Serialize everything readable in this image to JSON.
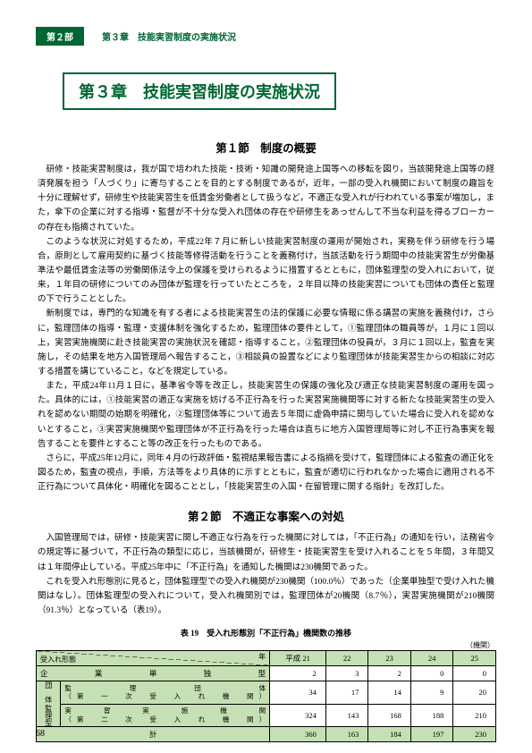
{
  "header": {
    "part_tab": "第２部",
    "breadcrumb": "第３章　技能実習制度の実施状況"
  },
  "chapter_title": "第３章　技能実習制度の実施状況",
  "section1_title": "第１節　制度の概要",
  "para1": "研修・技能実習制度は，我が国で培われた技能・技術・知識の開発途上国等への移転を図り，当該開発途上国等の経済発展を担う「人づくり」に寄与することを目的とする制度であるが，近年，一部の受入れ機関において制度の趣旨を十分に理解せず，研修生や技能実習生を低賃金労働者として扱うなど，不適正な受入れが行われている事案が増加し，また，傘下の企業に対する指導・監督が不十分な受入れ団体の存在や研修生をあっせんして不当な利益を得るブローカーの存在も指摘されていた。",
  "para2": "このような状況に対処するため，平成22年７月に新しい技能実習制度の運用が開始され，実務を伴う研修を行う場合，原則として雇用契約に基づく技能等修得活動を行うことを義務付け，当該活動を行う期間中の技能実習生が労働基準法や最低賃金法等の労働関係法令上の保護を受けられるように措置するとともに，団体監理型の受入れにおいて，従来，１年目の研修についてのみ団体が監理を行っていたところを，２年目以降の技能実習についても団体の責任と監理の下で行うこととした。",
  "para3": "新制度では，専門的な知識を有する者による技能実習生の法的保護に必要な情報に係る講習の実施を義務付け，さらに，監理団体の指導・監理・支援体制を強化するため，監理団体の要件として，①監理団体の職員等が，１月に１回以上，実習実施機関に赴き技能実習の実施状況を確認・指導すること，②監理団体の役員が，３月に１回以上，監査を実施し，その結果を地方入国管理局へ報告すること，③相談員の設置などにより監理団体が技能実習生からの相談に対応する措置を講じていること，などを規定している。",
  "para4": "また，平成24年11月１日に，基準省令等を改正し，技能実習生の保護の強化及び適正な技能実習制度の運用を図った。具体的には，①技能実習の適正な実施を妨げる不正行為を行った実習実施機関等に対する新たな技能実習生の受入れを認めない期間の始期を明確化，②監理団体等について過去５年間に虚偽申請に関与していた場合に受入れを認めないとすること，③実習実施機関や監理団体が不正行為を行った場合は直ちに地方入国管理局等に対し不正行為事実を報告することを要件とすること等の改正を行ったものである。",
  "para5": "さらに，平成25年12月に，同年４月の行政評価・監視結果報告書による指摘を受けて，監理団体による監査の適正化を図るため，監査の視点，手順，方法等をより具体的に示すとともに，監査が適切に行われなかった場合に適用される不正行為について具体化・明確化を図ることとし，「技能実習生の入国・在留管理に関する指針」を改訂した。",
  "section2_title": "第２節　不適正な事案への対処",
  "para6": "入国管理局では，研修・技能実習に関し不適正な行為を行った機関に対しては，「不正行為」の通知を行い，法務省令の規定等に基づいて，不正行為の類型に応じ，当該機関が，研修生・技能実習生を受け入れることを５年間，３年間又は１年間停止している。平成25年中に「不正行為」を通知した機関は230機関であった。",
  "para7": "これを受入れ形態別に見ると，団体監理型での受入れ機関が230機関（100.0％）であった（企業単独型で受け入れた機関はなし）。団体監理型の受入れについて，受入れ機関別では，監理団体が20機関（8.7％），実習実施機関が210機関（91.3％）となっている（表19）。",
  "table": {
    "caption": "表 19　受入れ形態別「不正行為」機関数の推移",
    "unit": "（機関）",
    "corner_year": "年",
    "corner_cat": "受入れ形態",
    "cols": [
      "平成 21",
      "22",
      "23",
      "24",
      "25"
    ],
    "rows": [
      {
        "label": "企　　業　　単　　独　　型",
        "values": [
          "2",
          "3",
          "2",
          "0",
          "0"
        ]
      },
      {
        "label": "監　　理　　団　　体\n（第　一　次　受　入　れ　機　関）",
        "sidelabel": true,
        "values": [
          "34",
          "17",
          "14",
          "9",
          "20"
        ]
      },
      {
        "label": "実　習　実　施　機　関\n（第　二　次　受　入　れ　機　関）",
        "sidelabel": true,
        "values": [
          "324",
          "143",
          "168",
          "188",
          "210"
        ]
      }
    ],
    "sum": {
      "label": "計",
      "values": [
        "360",
        "163",
        "184",
        "197",
        "230"
      ]
    },
    "side_group": "団　体\n監理型"
  },
  "page_number": "68",
  "colors": {
    "accent": "#006633",
    "row_bg": "#c5e0b4"
  }
}
